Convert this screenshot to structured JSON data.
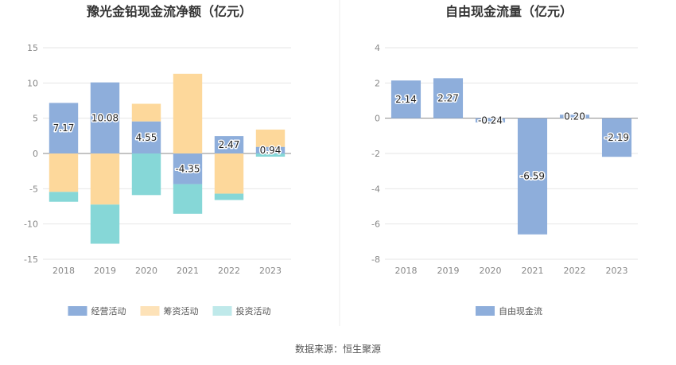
{
  "source": "数据来源：恒生聚源",
  "chart_data": [
    {
      "type": "bar",
      "stacked": true,
      "title": "豫光金铅现金流净额（亿元）",
      "categories": [
        "2018",
        "2019",
        "2020",
        "2021",
        "2022",
        "2023"
      ],
      "ylim": [
        -15,
        15
      ],
      "yticks": [
        15,
        10,
        5,
        0,
        -5,
        -10,
        -15
      ],
      "series": [
        {
          "name": "经营活动",
          "color": "#8eaedb",
          "values": [
            7.17,
            10.08,
            4.55,
            -4.35,
            2.47,
            0.94
          ],
          "labels": [
            "7.17",
            "10.08",
            "4.55",
            "-4.35",
            "2.47",
            "0.94"
          ]
        },
        {
          "name": "筹资活动",
          "color": "#fdd89b",
          "values": [
            -5.45,
            -7.25,
            2.5,
            11.3,
            -5.7,
            2.45
          ]
        },
        {
          "name": "投资活动",
          "color": "#86d7d7",
          "values": [
            -1.4,
            -5.55,
            -5.9,
            -4.2,
            -0.9,
            -0.45
          ]
        }
      ],
      "legend": [
        "经营活动",
        "筹资活动",
        "投资活动"
      ],
      "legend_colors": [
        "#8eaedb",
        "#fde2b8",
        "#bfe9ea"
      ]
    },
    {
      "type": "bar",
      "title": "自由现金流量（亿元）",
      "categories": [
        "2018",
        "2019",
        "2020",
        "2021",
        "2022",
        "2023"
      ],
      "ylim": [
        -8,
        4
      ],
      "yticks": [
        4,
        2,
        0,
        -2,
        -4,
        -6,
        -8
      ],
      "series": [
        {
          "name": "自由现金流",
          "color": "#8eaedb",
          "values": [
            2.14,
            2.27,
            -0.24,
            -6.59,
            0.2,
            -2.19
          ],
          "labels": [
            "2.14",
            "2.27",
            "-0.24",
            "-6.59",
            "0.20",
            "-2.19"
          ]
        }
      ],
      "legend": [
        "自由现金流"
      ],
      "legend_colors": [
        "#8eaedb"
      ]
    }
  ]
}
